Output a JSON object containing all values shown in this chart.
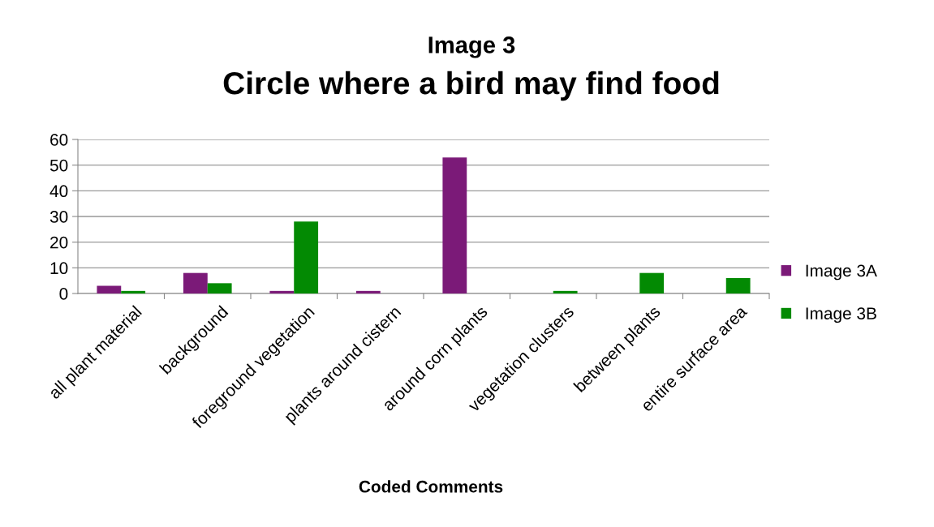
{
  "chart_data": {
    "type": "bar",
    "title": "Image 3",
    "subtitle": "Circle where a bird may find food",
    "xlabel": "Coded Comments",
    "categories": [
      "all plant material",
      "background",
      "foreground vegetation",
      "plants around cistern",
      "around corn plants",
      "vegetation clusters",
      "between plants",
      "entire surface area"
    ],
    "series": [
      {
        "name": "Image 3A",
        "color": "#7b1a78",
        "values": [
          3,
          8,
          1,
          1,
          53,
          0,
          0,
          0
        ]
      },
      {
        "name": "Image 3B",
        "color": "#038a03",
        "values": [
          1,
          4,
          28,
          0,
          0,
          1,
          8,
          6
        ]
      }
    ],
    "ylim": [
      0,
      60
    ],
    "yticks": [
      0,
      10,
      20,
      30,
      40,
      50,
      60
    ],
    "grid": "y",
    "legend": "right"
  }
}
